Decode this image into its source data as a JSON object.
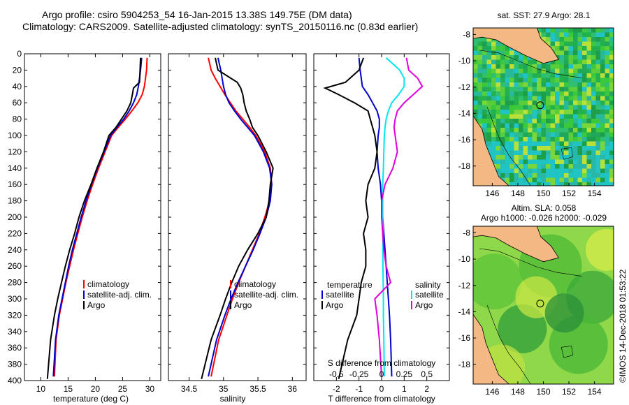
{
  "header": {
    "title_line1": "Argo profile: csiro 5904253_54 16-Jan-2015 13.38S 149.75E (DM data)",
    "title_line2": "Climatology: CARS2009. Satellite-adjusted climatology: synTS_20150116.nc (0.83d earlier)"
  },
  "colors": {
    "climatology": "#ff0000",
    "satellite": "#0000cc",
    "argo": "#000000",
    "sat_salinity": "#00e5ee",
    "salinity_diff": "#dd00dd",
    "land": "#f4b884"
  },
  "chart_data": [
    {
      "type": "line",
      "name": "temperature",
      "xlabel": "temperature (deg C)",
      "xlim": [
        7,
        32
      ],
      "xticks": [
        10,
        15,
        20,
        25,
        30
      ],
      "ylim": [
        400,
        0
      ],
      "yticks": [
        0,
        20,
        40,
        60,
        80,
        100,
        120,
        140,
        160,
        180,
        200,
        220,
        240,
        260,
        280,
        300,
        320,
        340,
        360,
        380,
        400
      ],
      "legend": {
        "position": "lower-right",
        "entries": [
          "climatology",
          "satellite-adj. clim.",
          "Argo"
        ]
      },
      "series": [
        {
          "name": "climatology",
          "color": "#ff0000",
          "x": [
            29.5,
            29.4,
            29.2,
            29.0,
            28.6,
            27.8,
            26.7,
            25.5,
            24.2,
            23.0,
            21.8,
            20.6,
            19.5,
            18.5,
            17.6,
            16.8,
            16.0,
            15.3,
            14.6,
            14.0,
            13.4,
            12.8,
            12.5
          ],
          "y": [
            5,
            20,
            30,
            40,
            50,
            60,
            70,
            80,
            90,
            100,
            120,
            140,
            160,
            180,
            200,
            220,
            240,
            260,
            280,
            300,
            320,
            350,
            395
          ]
        },
        {
          "name": "satellite-adj. clim.",
          "color": "#0000cc",
          "x": [
            28.5,
            28.3,
            28.1,
            27.9,
            27.6,
            27.0,
            26.2,
            25.2,
            24.0,
            22.8,
            21.6,
            20.4,
            19.3,
            18.3,
            17.4,
            16.6,
            15.8,
            15.1,
            14.5,
            13.9,
            13.3,
            12.7,
            12.3
          ],
          "y": [
            5,
            20,
            30,
            40,
            50,
            60,
            70,
            80,
            90,
            100,
            120,
            140,
            160,
            180,
            200,
            220,
            240,
            260,
            280,
            300,
            320,
            350,
            395
          ]
        },
        {
          "name": "Argo",
          "color": "#000000",
          "x": [
            28.3,
            28.2,
            28.1,
            27.0,
            26.8,
            26.5,
            25.8,
            24.8,
            23.8,
            22.5,
            21.5,
            20.3,
            19.2,
            18.0,
            17.0,
            16.2,
            15.3,
            14.5,
            13.8,
            13.1,
            12.5,
            11.8,
            11.2
          ],
          "y": [
            5,
            20,
            35,
            42,
            50,
            60,
            70,
            80,
            90,
            100,
            120,
            140,
            160,
            180,
            200,
            220,
            240,
            260,
            280,
            300,
            320,
            350,
            398
          ]
        }
      ]
    },
    {
      "type": "line",
      "name": "salinity",
      "xlabel": "salinity",
      "xlim": [
        34.2,
        36.2
      ],
      "xticks": [
        34.5,
        35,
        35.5,
        36
      ],
      "ylim": [
        400,
        0
      ],
      "legend": {
        "position": "lower-right",
        "entries": [
          "climatology",
          "satellite-adj. clim.",
          "Argo"
        ]
      },
      "series": [
        {
          "name": "climatology",
          "color": "#ff0000",
          "x": [
            34.78,
            34.82,
            34.88,
            34.95,
            35.02,
            35.1,
            35.18,
            35.28,
            35.38,
            35.47,
            35.6,
            35.68,
            35.7,
            35.67,
            35.6,
            35.52,
            35.42,
            35.32,
            35.22,
            35.13,
            35.05,
            34.93,
            34.82
          ],
          "y": [
            5,
            20,
            30,
            40,
            50,
            60,
            70,
            80,
            90,
            100,
            120,
            140,
            160,
            180,
            200,
            220,
            240,
            260,
            280,
            300,
            320,
            350,
            395
          ]
        },
        {
          "name": "satellite-adj. clim.",
          "color": "#0000cc",
          "x": [
            34.92,
            34.96,
            34.98,
            35.0,
            35.03,
            35.08,
            35.16,
            35.25,
            35.35,
            35.45,
            35.58,
            35.67,
            35.7,
            35.68,
            35.62,
            35.53,
            35.43,
            35.32,
            35.21,
            35.11,
            35.02,
            34.9,
            34.78
          ],
          "y": [
            5,
            20,
            30,
            40,
            50,
            60,
            70,
            80,
            90,
            100,
            120,
            140,
            160,
            180,
            200,
            220,
            240,
            260,
            280,
            300,
            320,
            350,
            395
          ]
        },
        {
          "name": "Argo",
          "color": "#000000",
          "x": [
            34.88,
            34.92,
            35.2,
            35.25,
            35.28,
            35.3,
            35.33,
            35.38,
            35.42,
            35.5,
            35.62,
            35.72,
            35.68,
            35.66,
            35.62,
            35.5,
            35.35,
            35.22,
            35.12,
            35.03,
            34.95,
            34.82,
            34.68
          ],
          "y": [
            5,
            20,
            35,
            42,
            50,
            60,
            70,
            80,
            90,
            100,
            120,
            140,
            160,
            180,
            200,
            220,
            240,
            260,
            280,
            300,
            320,
            350,
            398
          ]
        }
      ]
    },
    {
      "type": "line",
      "name": "differences",
      "xlabel": "T difference from climatology",
      "xlabel_top": "S difference from climatology",
      "xlim": [
        -3,
        3
      ],
      "xticks": [
        -2,
        -1,
        0,
        1,
        2
      ],
      "xticks_top": [
        -0.5,
        -0.25,
        0,
        0.25,
        0.5
      ],
      "ylim": [
        400,
        0
      ],
      "legend": {
        "position": "lower",
        "temperature_title": "temperature",
        "salinity_title": "salinity",
        "entries": [
          "satellite",
          "Argo",
          "satellite",
          "Argo"
        ]
      },
      "series": [
        {
          "name": "temperature satellite",
          "color": "#0000cc",
          "x": [
            -1.0,
            -0.95,
            -0.9,
            -0.85,
            -0.6,
            -0.4,
            -0.2,
            -0.1,
            -0.1,
            -0.15,
            -0.2,
            -0.15,
            -0.05,
            0.0,
            0.05,
            0.1,
            0.15,
            0.2,
            0.25,
            0.3,
            0.35,
            0.4,
            0.45
          ],
          "y": [
            5,
            20,
            30,
            40,
            50,
            60,
            70,
            80,
            90,
            100,
            120,
            140,
            160,
            180,
            200,
            220,
            240,
            260,
            280,
            300,
            320,
            350,
            395
          ]
        },
        {
          "name": "temperature Argo",
          "color": "#000000",
          "x": [
            -0.8,
            -1.0,
            -1.6,
            -2.5,
            -1.9,
            -1.2,
            -0.6,
            -0.5,
            -0.4,
            -0.3,
            -0.2,
            -0.3,
            -0.6,
            -0.7,
            -0.6,
            -0.8,
            -0.7,
            -0.7,
            -0.9,
            -1.0,
            -1.1,
            -1.5,
            -1.9
          ],
          "y": [
            5,
            20,
            35,
            42,
            50,
            60,
            70,
            80,
            90,
            100,
            120,
            140,
            160,
            180,
            200,
            220,
            240,
            260,
            280,
            300,
            320,
            350,
            398
          ]
        },
        {
          "name": "salinity satellite",
          "color": "#00e5ee",
          "x": [
            0.2,
            0.8,
            1.0,
            1.0,
            0.75,
            0.45,
            0.3,
            0.2,
            0.15,
            0.12,
            0.1,
            0.08,
            0.05,
            0.05,
            0.05,
            0.06,
            0.06,
            0.06,
            0.07,
            0.08,
            0.08,
            0.1,
            0.12
          ],
          "y": [
            5,
            20,
            30,
            40,
            50,
            60,
            70,
            80,
            90,
            100,
            120,
            140,
            160,
            180,
            200,
            220,
            240,
            260,
            280,
            300,
            320,
            350,
            395
          ]
        },
        {
          "name": "salinity Argo",
          "color": "#dd00dd",
          "x": [
            1.1,
            1.2,
            1.6,
            1.8,
            1.4,
            1.0,
            0.7,
            0.6,
            0.55,
            0.6,
            0.7,
            0.5,
            0.15,
            0.0,
            0.0,
            0.05,
            0.1,
            0.2,
            0.4,
            -0.3,
            -0.2,
            -0.1,
            0.0
          ],
          "y": [
            5,
            20,
            30,
            40,
            50,
            60,
            70,
            80,
            90,
            100,
            120,
            140,
            160,
            180,
            200,
            220,
            240,
            260,
            280,
            300,
            320,
            350,
            395
          ]
        }
      ]
    },
    {
      "type": "heatmap",
      "name": "sst-map",
      "title": "sat. SST: 27.9 Argo: 28.1",
      "xlim": [
        144.5,
        155.5
      ],
      "ylim": [
        -19.5,
        -7.5
      ],
      "xticks": [
        146,
        148,
        150,
        152,
        154
      ],
      "yticks": [
        -8,
        -10,
        -12,
        -14,
        -16,
        -18
      ],
      "profile_location": [
        149.75,
        -13.38
      ]
    },
    {
      "type": "heatmap",
      "name": "sla-map",
      "title": "Altim. SLA: 0.058",
      "subtitle": "Argo h1000: -0.026 h2000: -0.029",
      "xlim": [
        144.5,
        155.5
      ],
      "ylim": [
        -19.5,
        -7.5
      ],
      "xticks": [
        146,
        148,
        150,
        152,
        154
      ],
      "yticks": [
        -8,
        -10,
        -12,
        -14,
        -16,
        -18
      ],
      "profile_location": [
        149.75,
        -13.38
      ]
    }
  ],
  "footer": {
    "credit": "©IMOS 14-Dec-2018 01:53:22"
  }
}
